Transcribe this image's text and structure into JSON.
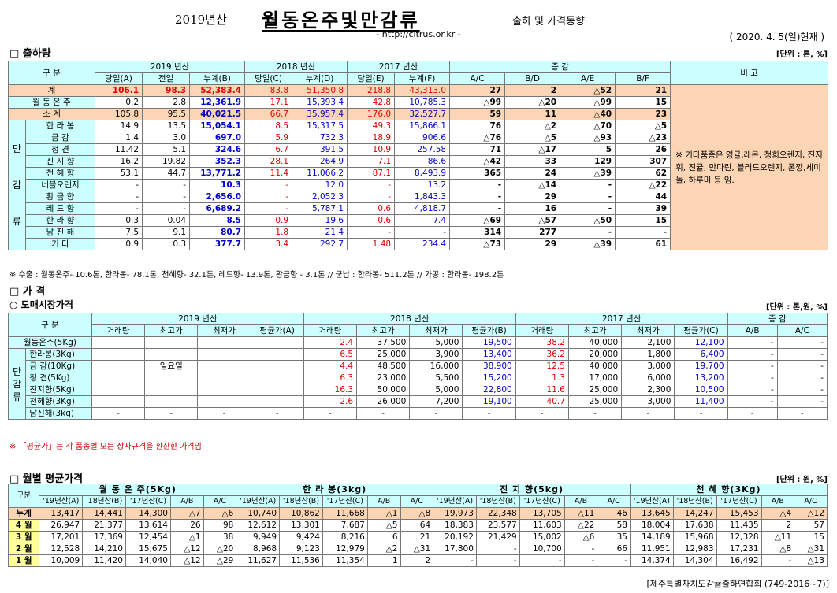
{
  "header": {
    "year": "2019년산",
    "title": "월동온주및만감류",
    "subtitle": "출하 및 가격동향",
    "url": "- http://citrus.or.kr -",
    "date": "( 2020. 4. 5(일)현재 )"
  },
  "shipment": {
    "section": "□ 출하량",
    "unit": "[단위 : 톤, %]",
    "h_gubun": "구   분",
    "h_2019": "2019 년산",
    "h_2018": "2018 년산",
    "h_2017": "2017 년산",
    "h_change": "증   감",
    "h_remark": "비 고",
    "sub": [
      "당일(A)",
      "전일",
      "누계(B)",
      "당일(C)",
      "누계(D)",
      "당일(E)",
      "누계(F)",
      "A/C",
      "B/D",
      "A/E",
      "B/F"
    ],
    "group_label": [
      "만",
      "감",
      "류"
    ],
    "remark": "※ 기타품종은 영귤,레몬, 청희오렌지, 진지휘, 진귤, 만다린, 블러드오렌지, 폰깡,세미놀, 하루미 등 임.",
    "rows": [
      {
        "label": "계",
        "v": [
          "106.1",
          "98.3",
          "52,383.4",
          "83.8",
          "51,350.8",
          "218.8",
          "43,313.0",
          "27",
          "2",
          "△52",
          "21"
        ]
      },
      {
        "label": "월 동 온 주",
        "v": [
          "0.2",
          "2.8",
          "12,361.9",
          "17.1",
          "15,393.4",
          "42.8",
          "10,785.3",
          "△99",
          "△20",
          "△99",
          "15"
        ]
      },
      {
        "label": "소   계",
        "v": [
          "105.8",
          "95.5",
          "40,021.5",
          "66.7",
          "35,957.4",
          "176.0",
          "32,527.7",
          "59",
          "11",
          "△40",
          "23"
        ]
      },
      {
        "label": "한 라 봉",
        "v": [
          "14.9",
          "13.5",
          "15,054.1",
          "8.5",
          "15,317.5",
          "49.3",
          "15,866.1",
          "76",
          "△2",
          "△70",
          "△5"
        ]
      },
      {
        "label": "금   감",
        "v": [
          "1.4",
          "3.0",
          "697.0",
          "5.9",
          "732.3",
          "18.9",
          "906.6",
          "△76",
          "△5",
          "△93",
          "△23"
        ]
      },
      {
        "label": "청   견",
        "v": [
          "11.42",
          "5.1",
          "324.6",
          "6.7",
          "391.5",
          "10.9",
          "257.58",
          "71",
          "△17",
          "5",
          "26"
        ]
      },
      {
        "label": "진 지 향",
        "v": [
          "16.2",
          "19.82",
          "352.3",
          "28.1",
          "264.9",
          "7.1",
          "86.6",
          "△42",
          "33",
          "129",
          "307"
        ]
      },
      {
        "label": "천 혜 향",
        "v": [
          "53.1",
          "44.7",
          "13,771.2",
          "11.4",
          "11,066.2",
          "87.1",
          "8,493.9",
          "365",
          "24",
          "△39",
          "62"
        ]
      },
      {
        "label": "네블오렌지",
        "v": [
          "-",
          "-",
          "10.3",
          "-",
          "12.0",
          "-",
          "13.2",
          "-",
          "△14",
          "-",
          "△22"
        ]
      },
      {
        "label": "황 금 향",
        "v": [
          "-",
          "-",
          "2,656.0",
          "-",
          "2,052.3",
          "-",
          "1,843.3",
          "-",
          "29",
          "-",
          "44"
        ]
      },
      {
        "label": "레 드 향",
        "v": [
          "-",
          "-",
          "6,689.2",
          "-",
          "5,787.1",
          "0.6",
          "4,818.7",
          "-",
          "16",
          "-",
          "39"
        ]
      },
      {
        "label": "한 라 향",
        "v": [
          "0.3",
          "0.04",
          "8.5",
          "0.9",
          "19.6",
          "0.6",
          "7.4",
          "△69",
          "△57",
          "△50",
          "15"
        ]
      },
      {
        "label": "남 진 해",
        "v": [
          "7.5",
          "9.1",
          "80.7",
          "1.8",
          "21.4",
          "-",
          "-",
          "314",
          "277",
          "-",
          "-"
        ]
      },
      {
        "label": "기   타",
        "v": [
          "0.9",
          "0.3",
          "377.7",
          "3.4",
          "292.7",
          "1.48",
          "234.4",
          "△73",
          "29",
          "△39",
          "61"
        ]
      }
    ],
    "note": "※ 수출 : 월동온주- 10.6톤, 한라봉- 78.1톤, 천혜향- 32.1톤, 레드향- 13.9톤, 황금향 - 3.1톤  // 군납 : 한라봉- 511.2톤  // 가공 : 한라봉- 198.2톤"
  },
  "price": {
    "section": "□ 가   격",
    "subsection": "○ 도매시장가격",
    "unit": "[단위 : 톤,원, %]",
    "h_gubun": "구   분",
    "h_2019": "2019 년산",
    "h_2018": "2018 년산",
    "h_2017": "2017 년산",
    "h_change": "증   감",
    "sub": [
      "거래량",
      "최고가",
      "최저가",
      "평균가(A)",
      "거래량",
      "최고가",
      "최저가",
      "평균가(B)",
      "거래량",
      "최고가",
      "최저가",
      "평균가(C)",
      "A/B",
      "A/C"
    ],
    "group_label": [
      "만",
      "감",
      "류"
    ],
    "rows": [
      {
        "label": "월동온주(5Kg)",
        "v": [
          "",
          "",
          "",
          "",
          "2.4",
          "37,500",
          "5,000",
          "19,500",
          "38.2",
          "40,000",
          "2,100",
          "12,100",
          "-",
          "-"
        ]
      },
      {
        "label": "한라봉(3Kg)",
        "v": [
          "",
          "",
          "",
          "",
          "6.5",
          "25,000",
          "3,900",
          "13,400",
          "36.2",
          "20,000",
          "1,800",
          "6,400",
          "-",
          "-"
        ]
      },
      {
        "label": "금  감(10Kg)",
        "v": [
          "",
          "일요일",
          "",
          "",
          "4.4",
          "48,500",
          "16,000",
          "38,900",
          "12.5",
          "40,000",
          "3,000",
          "19,700",
          "-",
          "-"
        ]
      },
      {
        "label": "청  견(5Kg)",
        "v": [
          "",
          "",
          "",
          "",
          "6.3",
          "23,000",
          "5,500",
          "15,200",
          "1.3",
          "17,000",
          "6,000",
          "13,200",
          "-",
          "-"
        ]
      },
      {
        "label": "진지향(5Kg)",
        "v": [
          "",
          "",
          "",
          "",
          "16.3",
          "50,000",
          "5,000",
          "22,800",
          "11.6",
          "25,000",
          "2,300",
          "10,500",
          "-",
          "-"
        ]
      },
      {
        "label": "천혜향(3Kg)",
        "v": [
          "",
          "",
          "",
          "",
          "2.6",
          "26,000",
          "7,200",
          "19,100",
          "40.7",
          "25,000",
          "3,000",
          "11,400",
          "-",
          "-"
        ]
      },
      {
        "label": "남진해(3kg)",
        "v": [
          "-",
          "-",
          "-",
          "-",
          "-",
          "-",
          "-",
          "-",
          "-",
          "-",
          "-",
          "-",
          "-",
          "-"
        ]
      }
    ],
    "note": "※ 「평균가」는 각 품종별 모든 상자규격을 환산한 가격임."
  },
  "monthly": {
    "section": "□ 월별 평균가격",
    "unit": "[단위 : 원, %]",
    "h_gubun": "구분",
    "groups": [
      "월 동 온 주(5Kg)",
      "한 라 봉(3kg)",
      "진 지 향(5kg)",
      "천 혜 향(3Kg)"
    ],
    "sub": [
      "'19년산(A)",
      "'18년산(B)",
      "'17년산(C)",
      "A/B",
      "A/C"
    ],
    "rows": [
      {
        "label": "누계",
        "v": [
          "13,417",
          "14,441",
          "14,300",
          "△7",
          "△6",
          "10,740",
          "10,862",
          "11,668",
          "△1",
          "△8",
          "19,973",
          "22,348",
          "13,705",
          "△11",
          "46",
          "13,645",
          "14,247",
          "15,453",
          "△4",
          "△12"
        ]
      },
      {
        "label": "4 월",
        "v": [
          "26,947",
          "21,377",
          "13,614",
          "26",
          "98",
          "12,612",
          "13,301",
          "7,687",
          "△5",
          "64",
          "18,383",
          "23,577",
          "11,603",
          "△22",
          "58",
          "18,004",
          "17,638",
          "11,435",
          "2",
          "57"
        ]
      },
      {
        "label": "3 월",
        "v": [
          "17,201",
          "17,369",
          "12,454",
          "△1",
          "38",
          "9,949",
          "9,424",
          "8,216",
          "6",
          "21",
          "20,192",
          "21,429",
          "15,002",
          "△6",
          "35",
          "14,189",
          "15,968",
          "12,328",
          "△11",
          "15"
        ]
      },
      {
        "label": "2 월",
        "v": [
          "12,528",
          "14,210",
          "15,675",
          "△12",
          "△20",
          "8,968",
          "9,123",
          "12,979",
          "△2",
          "△31",
          "17,800",
          "-",
          "10,700",
          "-",
          "66",
          "11,951",
          "12,983",
          "17,231",
          "△8",
          "△31"
        ]
      },
      {
        "label": "1 월",
        "v": [
          "10,009",
          "11,420",
          "14,040",
          "△12",
          "△29",
          "11,627",
          "11,536",
          "11,354",
          "1",
          "2",
          "-",
          "-",
          "-",
          "-",
          "-",
          "14,374",
          "14,304",
          "16,492",
          "-",
          "△13"
        ]
      }
    ],
    "footer": "[제주특별자치도감귤출하연합회 (749-2016~7)]"
  }
}
